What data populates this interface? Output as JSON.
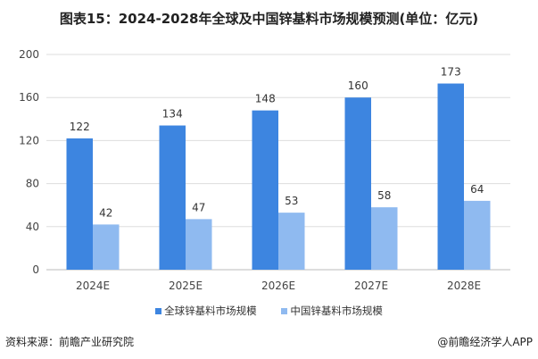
{
  "title": "图表15：2024-2028年全球及中国锌基料市场规模预测(单位：亿元)",
  "chart_data": {
    "type": "bar",
    "title": "图表15：2024-2028年全球及中国锌基料市场规模预测(单位：亿元)",
    "categories": [
      "2024E",
      "2025E",
      "2026E",
      "2027E",
      "2028E"
    ],
    "series": [
      {
        "name": "全球锌基料市场规模",
        "values": [
          122,
          134,
          148,
          160,
          173
        ],
        "color": "#3d85e0"
      },
      {
        "name": "中国锌基料市场规模",
        "values": [
          42,
          47,
          53,
          58,
          64
        ],
        "color": "#8fbaf0"
      }
    ],
    "ylim": [
      0,
      200
    ],
    "yticks": [
      0,
      40,
      80,
      120,
      160,
      200
    ],
    "grid": true,
    "legend": "bottom",
    "xlabel": "",
    "ylabel": ""
  },
  "footer": {
    "source": "资料来源：前瞻产业研究院",
    "brand": "@前瞻经济学人APP"
  }
}
